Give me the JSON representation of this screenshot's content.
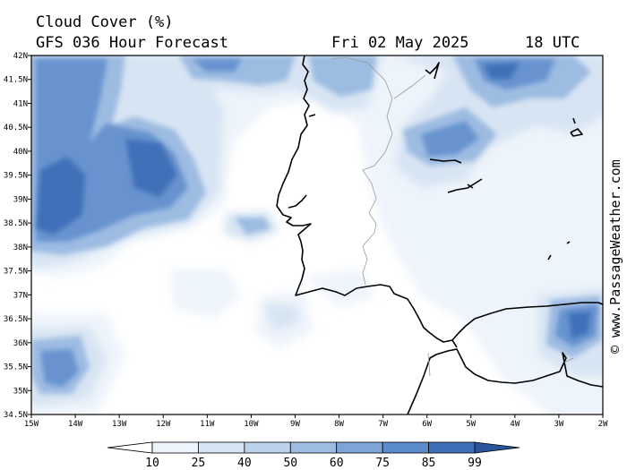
{
  "header": {
    "title": "Cloud Cover (%)",
    "model": "GFS 036 Hour Forecast",
    "date": "Fri 02 May 2025",
    "time": "18 UTC"
  },
  "credit": "© www.PassageWeather.com",
  "map": {
    "lon_range": [
      -15,
      -2
    ],
    "lat_range": [
      34.5,
      42
    ],
    "lon_labels": [
      "15W",
      "14W",
      "13W",
      "12W",
      "11W",
      "10W",
      "9W",
      "8W",
      "7W",
      "6W",
      "5W",
      "4W",
      "3W",
      "2W"
    ],
    "lat_labels": [
      "42N",
      "41.5N",
      "41N",
      "40.5N",
      "40N",
      "39.5N",
      "39N",
      "38.5N",
      "38N",
      "37.5N",
      "37N",
      "36.5N",
      "36N",
      "35.5N",
      "35N",
      "34.5N"
    ],
    "coastline_color": "#000000",
    "border_color": "#aaaaaa"
  },
  "colorbar": {
    "values": [
      "10",
      "25",
      "40",
      "50",
      "60",
      "75",
      "85",
      "99"
    ],
    "colors": [
      "#ffffff",
      "#eef4fb",
      "#d7e4f3",
      "#bcd1eb",
      "#9dbce2",
      "#7da5d8",
      "#5b8bcb",
      "#3f6fb8",
      "#2a559a"
    ]
  }
}
